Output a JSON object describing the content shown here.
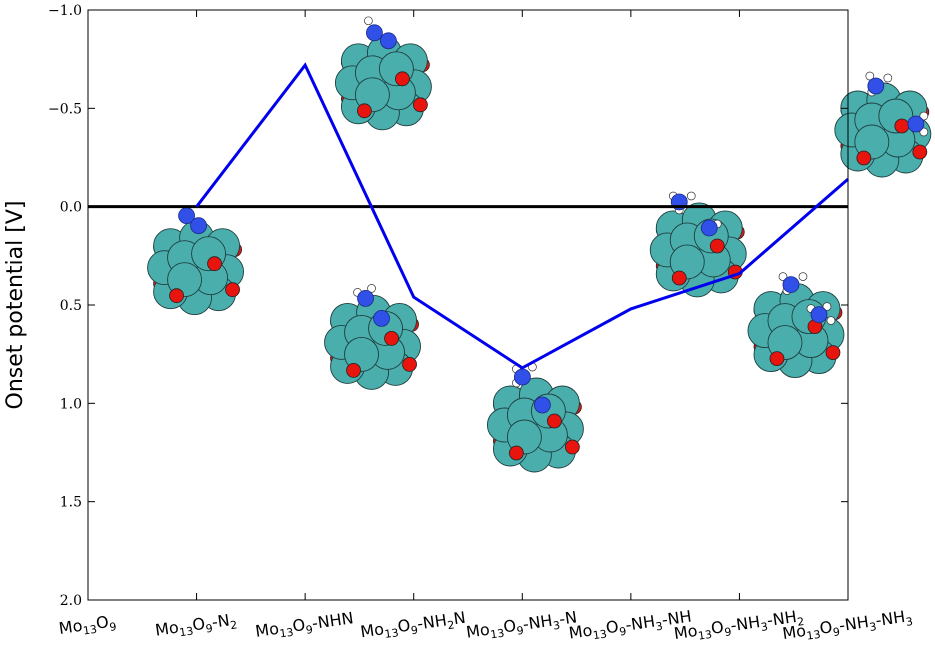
{
  "chart_data": {
    "type": "line",
    "ylabel": "Onset potential [V]",
    "y_inverted": true,
    "ylim": [
      -1.0,
      2.0
    ],
    "yticks": [
      {
        "value": -1.0,
        "label": "−1.0"
      },
      {
        "value": -0.5,
        "label": "−0.5"
      },
      {
        "value": 0.0,
        "label": "0.0"
      },
      {
        "value": 0.5,
        "label": "0.5"
      },
      {
        "value": 1.0,
        "label": "1.0"
      },
      {
        "value": 1.5,
        "label": "1.5"
      },
      {
        "value": 2.0,
        "label": "2.0"
      }
    ],
    "reference_line": {
      "y": 0.0,
      "color": "#000000"
    },
    "categories": [
      {
        "base": "Mo",
        "s1": "13",
        "mid": "O",
        "s2": "9",
        "suffix": [],
        "text": "Mo13O9"
      },
      {
        "base": "Mo",
        "s1": "13",
        "mid": "O",
        "s2": "9",
        "suffix": [
          {
            "t": "-N"
          },
          {
            "t": "2",
            "sub": true
          }
        ],
        "text": "Mo13O9-N2"
      },
      {
        "base": "Mo",
        "s1": "13",
        "mid": "O",
        "s2": "9",
        "suffix": [
          {
            "t": "-NHN"
          }
        ],
        "text": "Mo13O9-NHN"
      },
      {
        "base": "Mo",
        "s1": "13",
        "mid": "O",
        "s2": "9",
        "suffix": [
          {
            "t": "-NH"
          },
          {
            "t": "2",
            "sub": true
          },
          {
            "t": "N"
          }
        ],
        "text": "Mo13O9-NH2N"
      },
      {
        "base": "Mo",
        "s1": "13",
        "mid": "O",
        "s2": "9",
        "suffix": [
          {
            "t": "-NH"
          },
          {
            "t": "3",
            "sub": true
          },
          {
            "t": "-N"
          }
        ],
        "text": "Mo13O9-NH3-N"
      },
      {
        "base": "Mo",
        "s1": "13",
        "mid": "O",
        "s2": "9",
        "suffix": [
          {
            "t": "-NH"
          },
          {
            "t": "3",
            "sub": true
          },
          {
            "t": "-NH"
          }
        ],
        "text": "Mo13O9-NH3-NH"
      },
      {
        "base": "Mo",
        "s1": "13",
        "mid": "O",
        "s2": "9",
        "suffix": [
          {
            "t": "-NH"
          },
          {
            "t": "3",
            "sub": true
          },
          {
            "t": "-NH"
          },
          {
            "t": "2",
            "sub": true
          }
        ],
        "text": "Mo13O9-NH3-NH2"
      },
      {
        "base": "Mo",
        "s1": "13",
        "mid": "O",
        "s2": "9",
        "suffix": [
          {
            "t": "-NH"
          },
          {
            "t": "3",
            "sub": true
          },
          {
            "t": "-NH"
          },
          {
            "t": "3",
            "sub": true
          }
        ],
        "text": "Mo13O9-NH3-NH3"
      }
    ],
    "series": [
      {
        "color": "#0000ee",
        "points": [
          {
            "x": 1,
            "y": 0.0
          },
          {
            "x": 2,
            "y": -0.72
          },
          {
            "x": 3,
            "y": 0.46
          },
          {
            "x": 4,
            "y": 0.82
          },
          {
            "x": 5,
            "y": 0.52
          },
          {
            "x": 6,
            "y": 0.34
          },
          {
            "x": 7,
            "y": -0.14
          }
        ]
      }
    ],
    "illustrations": [
      {
        "x": 1,
        "y": 0.3,
        "adsorbate": "N2"
      },
      {
        "x": 2.73,
        "y": -0.64,
        "adsorbate": "NHN"
      },
      {
        "x": 2.63,
        "y": 0.68,
        "adsorbate": "NH2N"
      },
      {
        "x": 4.13,
        "y": 1.1,
        "adsorbate": "NH3-N"
      },
      {
        "x": 5.63,
        "y": 0.21,
        "adsorbate": "NH3-NH"
      },
      {
        "x": 7.33,
        "y": -0.4,
        "adsorbate": "NH3-NH2"
      },
      {
        "x": 6.53,
        "y": 0.62,
        "adsorbate": "NH3-NH3"
      }
    ],
    "colors": {
      "mo": "#4aaead",
      "o": "#e8140e",
      "n": "#3050e8",
      "h": "#ffffff"
    }
  }
}
